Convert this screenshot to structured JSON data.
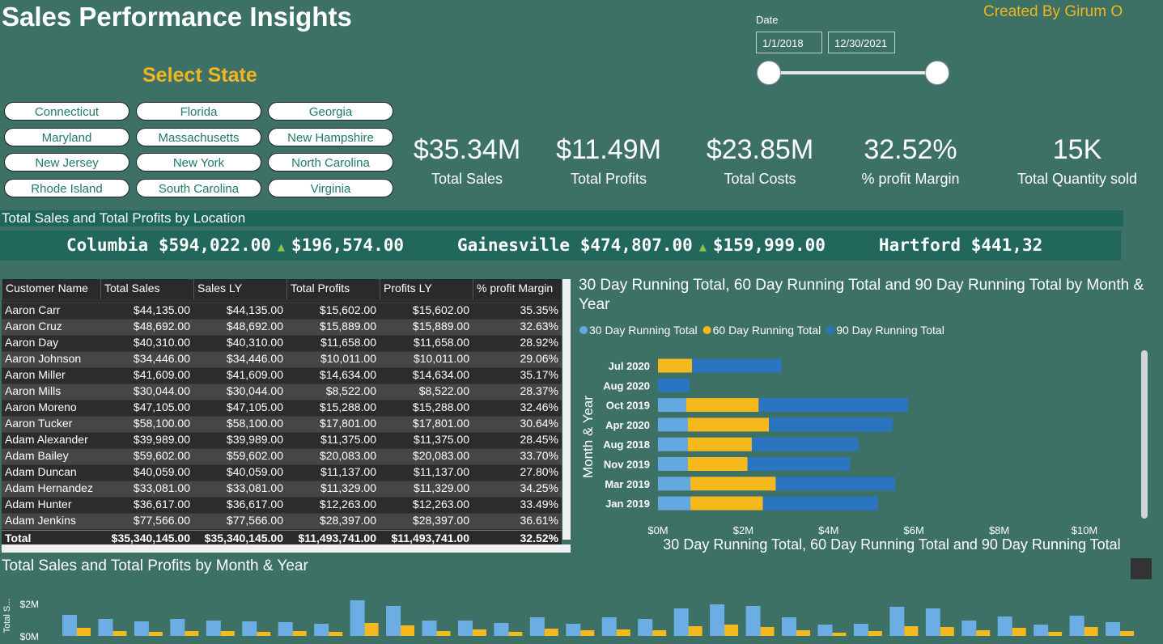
{
  "header": {
    "title": "Sales Performance Insights",
    "credit": "Created By Girum O"
  },
  "date_filter": {
    "label": "Date",
    "start": "1/1/2018",
    "end": "12/30/2021"
  },
  "state_filter": {
    "title": "Select State",
    "states": [
      "Connecticut",
      "Florida",
      "Georgia",
      "Maryland",
      "Massachusetts",
      "New Hampshire",
      "New Jersey",
      "New York",
      "North Carolina",
      "Rhode Island",
      "South Carolina",
      "Virginia"
    ]
  },
  "kpis": [
    {
      "value": "$35.34M",
      "label": "Total Sales"
    },
    {
      "value": "$11.49M",
      "label": "Total Profits"
    },
    {
      "value": "$23.85M",
      "label": "Total Costs"
    },
    {
      "value": "32.52%",
      "label": "% profit Margin"
    },
    {
      "value": "15K",
      "label": "Total Quantity sold"
    }
  ],
  "ticker": {
    "title": "Total Sales and Total Profits by Location",
    "items": [
      {
        "location": "Columbia",
        "sales": "$594,022.00",
        "profits": "$196,574.00"
      },
      {
        "location": "Gainesville",
        "sales": "$474,807.00",
        "profits": "$159,999.00"
      },
      {
        "location": "Hartford",
        "sales": "$441,32"
      }
    ]
  },
  "table": {
    "columns": [
      "Customer Name",
      "Total Sales",
      "Sales LY",
      "Total Profits",
      "Profits LY",
      "% profit Margin"
    ],
    "rows": [
      [
        "Aaron Carr",
        "$44,135.00",
        "$44,135.00",
        "$15,602.00",
        "$15,602.00",
        "35.35%"
      ],
      [
        "Aaron Cruz",
        "$48,692.00",
        "$48,692.00",
        "$15,889.00",
        "$15,889.00",
        "32.63%"
      ],
      [
        "Aaron Day",
        "$40,310.00",
        "$40,310.00",
        "$11,658.00",
        "$11,658.00",
        "28.92%"
      ],
      [
        "Aaron Johnson",
        "$34,446.00",
        "$34,446.00",
        "$10,011.00",
        "$10,011.00",
        "29.06%"
      ],
      [
        "Aaron Miller",
        "$41,609.00",
        "$41,609.00",
        "$14,634.00",
        "$14,634.00",
        "35.17%"
      ],
      [
        "Aaron Mills",
        "$30,044.00",
        "$30,044.00",
        "$8,522.00",
        "$8,522.00",
        "28.37%"
      ],
      [
        "Aaron Moreno",
        "$47,105.00",
        "$47,105.00",
        "$15,288.00",
        "$15,288.00",
        "32.46%"
      ],
      [
        "Aaron Tucker",
        "$58,100.00",
        "$58,100.00",
        "$17,801.00",
        "$17,801.00",
        "30.64%"
      ],
      [
        "Adam Alexander",
        "$39,989.00",
        "$39,989.00",
        "$11,375.00",
        "$11,375.00",
        "28.45%"
      ],
      [
        "Adam Bailey",
        "$59,602.00",
        "$59,602.00",
        "$20,083.00",
        "$20,083.00",
        "33.70%"
      ],
      [
        "Adam Duncan",
        "$40,059.00",
        "$40,059.00",
        "$11,137.00",
        "$11,137.00",
        "27.80%"
      ],
      [
        "Adam Hernandez",
        "$33,081.00",
        "$33,081.00",
        "$11,329.00",
        "$11,329.00",
        "34.25%"
      ],
      [
        "Adam Hunter",
        "$36,617.00",
        "$36,617.00",
        "$12,263.00",
        "$12,263.00",
        "33.49%"
      ],
      [
        "Adam Jenkins",
        "$77,566.00",
        "$77,566.00",
        "$28,397.00",
        "$28,397.00",
        "36.61%"
      ]
    ],
    "total": [
      "Total",
      "$35,340,145.00",
      "$35,340,145.00",
      "$11,493,741.00",
      "$11,493,741.00",
      "32.52%"
    ]
  },
  "running_chart": {
    "type": "bar",
    "orientation": "horizontal",
    "stacked": true,
    "title": "30 Day Running Total, 60 Day Running Total and 90 Day Running Total by Month & Year",
    "categories": [
      "Jul 2020",
      "Aug 2020",
      "Oct 2019",
      "Apr 2020",
      "Aug 2018",
      "Nov 2019",
      "Mar 2019",
      "Jan 2019"
    ],
    "series": [
      {
        "name": "30 Day Running Total",
        "color": "#62a9e2",
        "values": [
          0,
          0,
          0.66,
          0.7,
          0.7,
          0.7,
          0.76,
          0.76
        ]
      },
      {
        "name": "60 Day Running Total",
        "color": "#f6b91d",
        "values": [
          0.8,
          0,
          1.7,
          1.9,
          1.5,
          1.4,
          2.0,
          1.7
        ]
      },
      {
        "name": "90 Day Running Total",
        "color": "#2a74c0",
        "values": [
          2.1,
          0.74,
          3.5,
          2.9,
          2.5,
          2.4,
          2.8,
          2.7
        ]
      }
    ],
    "xlim": [
      0,
      10
    ],
    "xticks": [
      {
        "value": 0,
        "label": "$0M"
      },
      {
        "value": 2,
        "label": "$2M"
      },
      {
        "value": 4,
        "label": "$4M"
      },
      {
        "value": 6,
        "label": "$6M"
      },
      {
        "value": 8,
        "label": "$8M"
      },
      {
        "value": 10,
        "label": "$10M"
      }
    ],
    "ylabel": "Month & Year",
    "xlabel": "30 Day Running Total, 60 Day Running Total and 90 Day Running Total",
    "legend": "top"
  },
  "monthly_chart": {
    "type": "bar",
    "title": "Total Sales and Total Profits by Month & Year",
    "ylabel": "Total S...",
    "categories": [
      null,
      null,
      null,
      null,
      null,
      null,
      null,
      null,
      null,
      null,
      null,
      null,
      null,
      null,
      null,
      null,
      null,
      null,
      null,
      null,
      null,
      null,
      null,
      null,
      null,
      null,
      null,
      null,
      null,
      null
    ],
    "series": [
      {
        "color": "#6caee3",
        "values": [
          1.3,
          1.05,
          0.9,
          1.05,
          0.95,
          0.9,
          0.85,
          0.75,
          2.2,
          1.85,
          0.95,
          0.95,
          0.8,
          1.15,
          0.75,
          1.15,
          1.05,
          1.7,
          1.95,
          1.85,
          1.15,
          0.7,
          0.75,
          1.8,
          1.7,
          0.95,
          1.2,
          0.7,
          1.25,
          0.85
        ]
      },
      {
        "color": "#f6b91d",
        "values": [
          0.5,
          0.3,
          0.25,
          0.3,
          0.3,
          0.25,
          0.3,
          0.25,
          0.8,
          0.65,
          0.3,
          0.4,
          0.25,
          0.45,
          0.35,
          0.4,
          0.35,
          0.6,
          0.7,
          0.55,
          0.35,
          0.2,
          0.3,
          0.6,
          0.55,
          0.35,
          0.5,
          0.25,
          0.55,
          0.3
        ]
      }
    ],
    "ylim": [
      0,
      2.5
    ],
    "yticks": [
      {
        "value": 0,
        "label": "$0M"
      },
      {
        "value": 2,
        "label": "$2M"
      }
    ]
  }
}
